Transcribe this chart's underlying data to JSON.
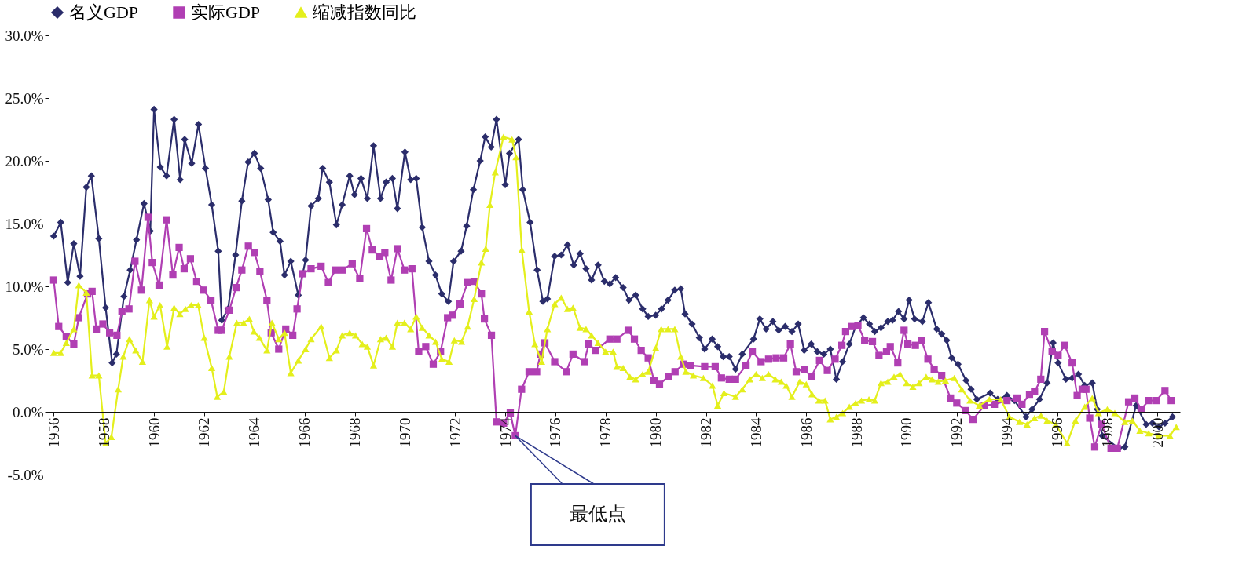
{
  "chart_data": {
    "type": "line",
    "xlim": [
      1955.8,
      2000.9
    ],
    "xticks": [
      1956,
      1958,
      1960,
      1962,
      1964,
      1966,
      1968,
      1970,
      1972,
      1974,
      1976,
      1978,
      1980,
      1982,
      1984,
      1986,
      1988,
      1990,
      1992,
      1994,
      1996,
      1998,
      2000
    ],
    "ylim": [
      -5,
      30
    ],
    "yticks": [
      {
        "value": -5,
        "label": "-5.0%"
      },
      {
        "value": 0,
        "label": "0.0%"
      },
      {
        "value": 5,
        "label": "5.0%"
      },
      {
        "value": 10,
        "label": "10.0%"
      },
      {
        "value": 15,
        "label": "15.0%"
      },
      {
        "value": 20,
        "label": "20.0%"
      },
      {
        "value": 25,
        "label": "25.0%"
      },
      {
        "value": 30,
        "label": "30.0%"
      }
    ],
    "grid": false,
    "legend": "top",
    "line_style": "solid",
    "annotations": [
      {
        "text": "最低点",
        "x": 1974.4,
        "y": -1.9
      }
    ],
    "series": [
      {
        "name": "名义GDP",
        "color": "#2b2d6b",
        "marker": "diamond",
        "x": [
          1956.0,
          1956.28,
          1956.56,
          1956.8,
          1957.05,
          1957.3,
          1957.5,
          1957.8,
          1958.07,
          1958.33,
          1958.5,
          1958.8,
          1959.05,
          1959.3,
          1959.6,
          1959.85,
          1960.0,
          1960.25,
          1960.5,
          1960.8,
          1961.04,
          1961.22,
          1961.5,
          1961.77,
          1962.05,
          1962.3,
          1962.56,
          1962.7,
          1962.95,
          1963.25,
          1963.5,
          1963.75,
          1964.0,
          1964.25,
          1964.55,
          1964.75,
          1965.02,
          1965.2,
          1965.45,
          1965.75,
          1966.04,
          1966.26,
          1966.55,
          1966.72,
          1966.99,
          1967.27,
          1967.5,
          1967.8,
          1967.99,
          1968.25,
          1968.5,
          1968.75,
          1969.03,
          1969.25,
          1969.5,
          1969.7,
          1970.0,
          1970.23,
          1970.45,
          1970.69,
          1970.96,
          1971.22,
          1971.47,
          1971.73,
          1971.94,
          1972.24,
          1972.46,
          1972.73,
          1973.0,
          1973.2,
          1973.44,
          1973.65,
          1974.0,
          1974.17,
          1974.53,
          1974.7,
          1974.99,
          1975.27,
          1975.5,
          1975.68,
          1975.97,
          1976.23,
          1976.48,
          1976.73,
          1976.98,
          1977.22,
          1977.44,
          1977.7,
          1977.95,
          1978.17,
          1978.4,
          1978.7,
          1978.93,
          1979.2,
          1979.48,
          1979.7,
          1980.0,
          1980.23,
          1980.49,
          1980.76,
          1981.0,
          1981.17,
          1981.45,
          1981.74,
          1981.95,
          1982.25,
          1982.47,
          1982.69,
          1982.93,
          1983.18,
          1983.45,
          1983.9,
          1984.15,
          1984.4,
          1984.67,
          1984.9,
          1985.16,
          1985.43,
          1985.68,
          1985.92,
          1986.2,
          1986.44,
          1986.7,
          1986.96,
          1987.2,
          1987.45,
          1987.72,
          1987.97,
          1988.28,
          1988.52,
          1988.73,
          1988.98,
          1989.25,
          1989.44,
          1989.68,
          1989.9,
          1990.1,
          1990.32,
          1990.63,
          1990.87,
          1991.2,
          1991.4,
          1991.6,
          1991.8,
          1992.05,
          1992.37,
          1992.57,
          1992.8,
          1993.33,
          1993.63,
          1994.0,
          1994.3,
          1994.76,
          1995.0,
          1995.3,
          1995.6,
          1995.84,
          1996.04,
          1996.35,
          1996.6,
          1996.85,
          1997.1,
          1997.4,
          1997.6,
          1997.8,
          1998.45,
          1998.7,
          1999.15,
          1999.55,
          1999.8,
          2000.06,
          2000.3,
          2000.6
        ],
        "values": [
          14.0,
          15.1,
          10.3,
          13.4,
          10.8,
          17.9,
          18.8,
          13.8,
          8.3,
          3.9,
          4.6,
          9.2,
          11.3,
          13.7,
          16.6,
          14.4,
          24.1,
          19.5,
          18.8,
          23.3,
          18.5,
          21.7,
          19.8,
          22.9,
          19.4,
          16.5,
          12.8,
          7.3,
          8.2,
          12.5,
          16.8,
          19.9,
          20.6,
          19.4,
          16.9,
          14.3,
          13.6,
          10.9,
          12.0,
          9.3,
          12.1,
          16.4,
          17.0,
          19.4,
          18.3,
          14.9,
          16.5,
          18.8,
          17.3,
          18.6,
          17.0,
          21.2,
          17.0,
          18.3,
          18.6,
          16.2,
          20.7,
          18.5,
          18.6,
          14.7,
          12.0,
          10.9,
          9.4,
          8.8,
          12.0,
          12.8,
          14.8,
          17.7,
          20.0,
          21.9,
          21.1,
          23.3,
          18.1,
          20.6,
          21.7,
          17.7,
          15.1,
          11.3,
          8.8,
          9.0,
          12.4,
          12.5,
          13.3,
          11.7,
          12.6,
          11.4,
          10.5,
          11.7,
          10.4,
          10.2,
          10.7,
          9.9,
          8.9,
          9.3,
          8.2,
          7.6,
          7.7,
          8.2,
          8.9,
          9.7,
          9.8,
          7.8,
          7.0,
          5.9,
          5.0,
          5.8,
          5.2,
          4.4,
          4.4,
          3.4,
          4.6,
          5.8,
          7.4,
          6.6,
          7.2,
          6.5,
          6.8,
          6.4,
          7.0,
          4.9,
          5.4,
          4.8,
          4.6,
          5.0,
          2.6,
          4.0,
          5.4,
          6.8,
          7.5,
          7.0,
          6.4,
          6.7,
          7.2,
          7.3,
          8.0,
          7.4,
          8.9,
          7.4,
          7.2,
          8.7,
          6.6,
          6.2,
          5.7,
          4.3,
          3.8,
          2.5,
          1.8,
          1.0,
          1.5,
          1.0,
          1.3,
          0.9,
          -0.4,
          0.2,
          1.0,
          2.3,
          5.5,
          3.9,
          2.6,
          2.7,
          3.0,
          2.1,
          2.3,
          0.2,
          -1.9,
          -2.9,
          -2.8,
          0.5,
          -1.0,
          -0.9,
          -1.2,
          -0.9,
          -0.4
        ]
      },
      {
        "name": "实际GDP",
        "color": "#b03fb3",
        "marker": "square",
        "x": [
          1956.0,
          1956.2,
          1956.5,
          1956.8,
          1957.0,
          1957.35,
          1957.53,
          1957.7,
          1957.96,
          1958.23,
          1958.52,
          1958.72,
          1959.0,
          1959.24,
          1959.5,
          1959.76,
          1959.93,
          1960.2,
          1960.5,
          1960.75,
          1961.0,
          1961.2,
          1961.45,
          1961.7,
          1961.98,
          1962.27,
          1962.56,
          1962.7,
          1963.0,
          1963.27,
          1963.5,
          1963.76,
          1964.0,
          1964.22,
          1964.5,
          1964.67,
          1964.97,
          1965.25,
          1965.53,
          1965.7,
          1965.93,
          1966.26,
          1966.66,
          1966.95,
          1967.23,
          1967.5,
          1967.9,
          1968.2,
          1968.47,
          1968.7,
          1969.0,
          1969.2,
          1969.45,
          1969.7,
          1969.98,
          1970.28,
          1970.55,
          1970.83,
          1971.13,
          1971.42,
          1971.7,
          1971.9,
          1972.2,
          1972.5,
          1972.76,
          1973.05,
          1973.17,
          1973.45,
          1973.65,
          1973.93,
          1974.2,
          1974.4,
          1974.65,
          1974.95,
          1975.25,
          1975.4,
          1975.58,
          1975.97,
          1976.43,
          1976.7,
          1977.15,
          1977.33,
          1977.6,
          1978.17,
          1978.45,
          1978.9,
          1979.15,
          1979.42,
          1979.7,
          1979.93,
          1980.15,
          1980.5,
          1980.77,
          1981.1,
          1981.4,
          1981.95,
          1982.37,
          1982.62,
          1982.93,
          1983.18,
          1983.6,
          1983.85,
          1984.2,
          1984.5,
          1984.8,
          1985.1,
          1985.37,
          1985.6,
          1985.92,
          1986.2,
          1986.53,
          1986.84,
          1987.15,
          1987.42,
          1987.57,
          1987.82,
          1988.06,
          1988.33,
          1988.64,
          1988.9,
          1989.2,
          1989.35,
          1989.65,
          1989.9,
          1990.05,
          1990.35,
          1990.6,
          1990.85,
          1991.1,
          1991.4,
          1991.75,
          1992.0,
          1992.35,
          1992.65,
          1993.1,
          1993.5,
          1994.0,
          1994.4,
          1994.6,
          1994.9,
          1995.1,
          1995.35,
          1995.5,
          1995.8,
          1996.04,
          1996.3,
          1996.6,
          1996.8,
          1997.0,
          1997.15,
          1997.3,
          1997.5,
          1997.77,
          1998.15,
          1998.4,
          1998.85,
          1999.1,
          1999.35,
          1999.65,
          1999.95,
          2000.3,
          2000.55
        ],
        "values": [
          10.5,
          6.8,
          6.0,
          5.4,
          7.5,
          9.4,
          9.6,
          6.6,
          7.0,
          6.3,
          6.1,
          8.0,
          8.2,
          12.0,
          9.7,
          15.5,
          11.9,
          10.1,
          15.3,
          10.9,
          13.1,
          11.4,
          12.2,
          10.4,
          9.7,
          8.9,
          6.5,
          6.5,
          8.1,
          9.9,
          11.3,
          13.2,
          12.7,
          11.2,
          8.9,
          6.3,
          5.0,
          6.6,
          6.1,
          8.2,
          11.0,
          11.4,
          11.6,
          10.3,
          11.3,
          11.3,
          11.8,
          10.6,
          14.6,
          12.9,
          12.4,
          12.7,
          10.5,
          13.0,
          11.3,
          11.4,
          4.8,
          5.2,
          3.8,
          4.8,
          7.5,
          7.7,
          8.6,
          10.3,
          10.4,
          9.4,
          7.4,
          6.1,
          -0.8,
          -0.9,
          -0.1,
          -1.9,
          1.8,
          3.2,
          3.2,
          4.6,
          5.5,
          4.0,
          3.2,
          4.6,
          4.0,
          5.4,
          4.9,
          5.8,
          5.8,
          6.5,
          5.8,
          4.9,
          4.3,
          2.5,
          2.2,
          2.8,
          3.2,
          3.8,
          3.7,
          3.6,
          3.6,
          2.7,
          2.6,
          2.6,
          3.7,
          4.8,
          4.0,
          4.2,
          4.3,
          4.3,
          5.4,
          3.2,
          3.4,
          2.8,
          4.1,
          3.3,
          4.2,
          5.3,
          6.4,
          6.8,
          6.9,
          5.7,
          5.6,
          4.5,
          4.8,
          5.2,
          3.9,
          6.5,
          5.4,
          5.3,
          5.7,
          4.2,
          3.4,
          2.9,
          1.1,
          0.7,
          0.1,
          -0.6,
          0.5,
          0.6,
          0.9,
          1.1,
          0.6,
          1.4,
          1.6,
          2.6,
          6.4,
          4.8,
          4.5,
          5.3,
          3.9,
          1.3,
          1.8,
          1.8,
          -0.5,
          -2.8,
          -1.0,
          -2.9,
          -2.9,
          0.8,
          1.1,
          0.2,
          0.9,
          0.9,
          1.7,
          0.9
        ]
      },
      {
        "name": "缩减指数同比",
        "color": "#e4ef1c",
        "marker": "triangle",
        "x": [
          1956.0,
          1956.28,
          1956.5,
          1956.8,
          1957.0,
          1957.3,
          1957.53,
          1957.8,
          1958.07,
          1958.3,
          1958.57,
          1958.77,
          1959.02,
          1959.27,
          1959.54,
          1959.82,
          1960.0,
          1960.24,
          1960.52,
          1960.8,
          1961.03,
          1961.25,
          1961.48,
          1961.76,
          1962.0,
          1962.3,
          1962.52,
          1962.78,
          1963.0,
          1963.3,
          1963.57,
          1963.8,
          1963.98,
          1964.2,
          1964.5,
          1964.7,
          1964.97,
          1965.2,
          1965.45,
          1965.75,
          1966.04,
          1966.26,
          1966.66,
          1966.99,
          1967.27,
          1967.5,
          1967.8,
          1968.03,
          1968.3,
          1968.5,
          1968.75,
          1969.03,
          1969.25,
          1969.5,
          1969.7,
          1969.98,
          1970.23,
          1970.45,
          1970.69,
          1970.96,
          1971.22,
          1971.47,
          1971.76,
          1971.97,
          1972.26,
          1972.5,
          1972.76,
          1973.05,
          1973.22,
          1973.39,
          1973.6,
          1973.93,
          1974.27,
          1974.43,
          1974.66,
          1974.95,
          1975.18,
          1975.45,
          1975.68,
          1975.97,
          1976.23,
          1976.48,
          1976.7,
          1976.98,
          1977.22,
          1977.44,
          1977.7,
          1978.0,
          1978.3,
          1978.45,
          1978.7,
          1978.97,
          1979.2,
          1979.48,
          1979.7,
          1980.0,
          1980.22,
          1980.49,
          1980.76,
          1981.0,
          1981.2,
          1981.5,
          1981.9,
          1982.26,
          1982.47,
          1982.72,
          1983.18,
          1983.45,
          1983.75,
          1984.0,
          1984.25,
          1984.5,
          1984.77,
          1985.0,
          1985.2,
          1985.43,
          1985.74,
          1986.0,
          1986.23,
          1986.5,
          1986.75,
          1986.96,
          1987.2,
          1987.45,
          1987.72,
          1987.97,
          1988.2,
          1988.5,
          1988.73,
          1988.98,
          1989.25,
          1989.5,
          1989.74,
          1990.0,
          1990.25,
          1990.5,
          1990.78,
          1991.02,
          1991.26,
          1991.55,
          1991.9,
          1992.2,
          1992.53,
          1992.9,
          1993.3,
          1993.75,
          1994.1,
          1994.5,
          1994.8,
          1995.1,
          1995.36,
          1995.6,
          1995.94,
          1996.4,
          1996.73,
          1997.1,
          1997.4,
          1997.65,
          1998.0,
          1998.3,
          1998.7,
          1999.0,
          1999.3,
          1999.65,
          2000.05,
          2000.5,
          2000.75
        ],
        "values": [
          4.7,
          4.7,
          5.5,
          6.6,
          10.1,
          9.5,
          2.9,
          2.9,
          -2.5,
          -2.0,
          1.8,
          4.4,
          5.8,
          4.9,
          4.0,
          8.9,
          7.6,
          8.5,
          5.2,
          8.3,
          7.8,
          8.2,
          8.5,
          8.5,
          5.9,
          3.5,
          1.2,
          1.6,
          4.4,
          7.1,
          7.1,
          7.4,
          6.4,
          5.9,
          4.9,
          7.1,
          5.8,
          6.3,
          3.1,
          4.1,
          5.0,
          5.8,
          6.8,
          4.3,
          4.9,
          6.1,
          6.3,
          6.1,
          5.4,
          5.2,
          3.7,
          5.8,
          5.9,
          5.2,
          7.1,
          7.1,
          6.6,
          7.6,
          6.7,
          6.1,
          5.6,
          4.2,
          4.0,
          5.7,
          5.6,
          6.8,
          9.0,
          11.9,
          13.0,
          16.5,
          19.1,
          21.9,
          21.7,
          20.3,
          12.9,
          8.0,
          5.4,
          4.0,
          6.6,
          8.6,
          9.1,
          8.2,
          8.3,
          6.7,
          6.6,
          6.1,
          5.5,
          4.8,
          4.8,
          3.6,
          3.5,
          2.8,
          2.6,
          3.0,
          3.2,
          5.1,
          6.6,
          6.6,
          6.6,
          4.4,
          3.2,
          2.9,
          2.7,
          2.1,
          0.5,
          1.5,
          1.2,
          1.8,
          2.6,
          3.0,
          2.7,
          3.0,
          2.6,
          2.4,
          2.1,
          1.2,
          2.4,
          2.2,
          1.4,
          0.9,
          0.9,
          -0.6,
          -0.4,
          -0.1,
          0.4,
          0.7,
          0.9,
          1.0,
          0.9,
          2.3,
          2.4,
          2.8,
          3.0,
          2.3,
          2.0,
          2.3,
          2.8,
          2.6,
          2.4,
          2.5,
          2.7,
          1.8,
          0.9,
          0.5,
          1.0,
          1.0,
          -0.4,
          -0.8,
          -1.0,
          -0.5,
          -0.3,
          -0.7,
          -1.0,
          -2.5,
          -0.7,
          0.4,
          1.1,
          -0.1,
          0.2,
          -0.1,
          -0.8,
          -0.7,
          -1.5,
          -1.7,
          -1.9,
          -1.9,
          -1.2
        ]
      }
    ]
  }
}
